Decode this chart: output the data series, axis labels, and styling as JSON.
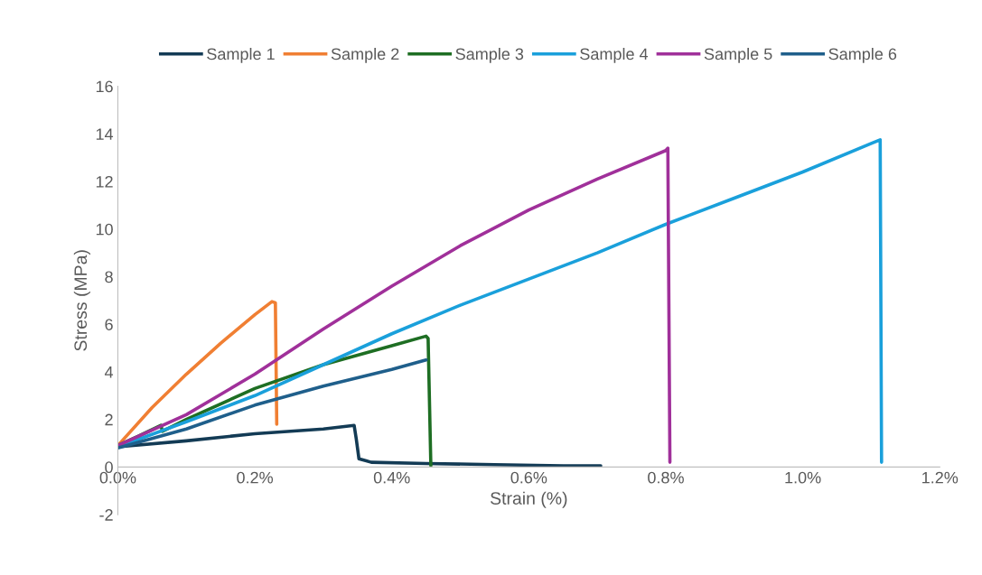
{
  "chart_data": {
    "type": "line",
    "xlabel": "Strain (%)",
    "ylabel": "Stress (MPa)",
    "xlim": [
      0,
      1.2
    ],
    "xticks": [
      {
        "value": 0,
        "label": "0.0%"
      },
      {
        "value": 0.2,
        "label": "0.2%"
      },
      {
        "value": 0.4,
        "label": "0.4%"
      },
      {
        "value": 0.6,
        "label": "0.6%"
      },
      {
        "value": 0.8,
        "label": "0.8%"
      },
      {
        "value": 1.0,
        "label": "1.0%"
      },
      {
        "value": 1.2,
        "label": "1.2%"
      }
    ],
    "ylim": [
      -2,
      16
    ],
    "yticks": [
      -2,
      0,
      2,
      4,
      6,
      8,
      10,
      12,
      14,
      16
    ],
    "grid": false,
    "legend": "top",
    "marker": "none",
    "line_style": "solid",
    "series": [
      {
        "name": "Sample 1",
        "color": "#133b55",
        "x": [
          0,
          0.1,
          0.2,
          0.3,
          0.345,
          0.348,
          0.352,
          0.37,
          0.45,
          0.55,
          0.65,
          0.705
        ],
        "values": [
          0.85,
          1.1,
          1.4,
          1.6,
          1.75,
          1.2,
          0.35,
          0.2,
          0.15,
          0.1,
          0.05,
          0.05
        ]
      },
      {
        "name": "Sample 2",
        "color": "#f07f33",
        "x": [
          0,
          0.05,
          0.1,
          0.15,
          0.2,
          0.225,
          0.23,
          0.232
        ],
        "values": [
          0.9,
          2.5,
          3.9,
          5.2,
          6.4,
          6.95,
          6.9,
          1.8
        ]
      },
      {
        "name": "Sample 3",
        "color": "#1e6e23",
        "x": [
          0,
          0.03,
          0.063,
          0.065,
          0.1,
          0.2,
          0.3,
          0.4,
          0.45,
          0.453,
          0.457
        ],
        "values": [
          0.9,
          1.3,
          1.75,
          1.5,
          2.0,
          3.3,
          4.3,
          5.1,
          5.5,
          5.4,
          0.05
        ]
      },
      {
        "name": "Sample 4",
        "color": "#1aa0db",
        "x": [
          0,
          0.1,
          0.2,
          0.3,
          0.4,
          0.5,
          0.6,
          0.7,
          0.8,
          0.9,
          1.0,
          1.1,
          1.113,
          1.115
        ],
        "values": [
          0.85,
          1.9,
          3.0,
          4.3,
          5.6,
          6.8,
          7.9,
          9.0,
          10.2,
          11.3,
          12.4,
          13.6,
          13.75,
          0.2
        ]
      },
      {
        "name": "Sample 5",
        "color": "#a0309a",
        "x": [
          0,
          0.1,
          0.2,
          0.3,
          0.4,
          0.5,
          0.6,
          0.7,
          0.8,
          0.803,
          0.806
        ],
        "values": [
          0.9,
          2.2,
          3.9,
          5.8,
          7.6,
          9.3,
          10.8,
          12.1,
          13.3,
          13.4,
          0.2
        ]
      },
      {
        "name": "Sample 6",
        "color": "#1f5f8b",
        "x": [
          0,
          0.1,
          0.2,
          0.3,
          0.4,
          0.45
        ],
        "values": [
          0.8,
          1.6,
          2.6,
          3.4,
          4.1,
          4.5
        ]
      }
    ]
  }
}
